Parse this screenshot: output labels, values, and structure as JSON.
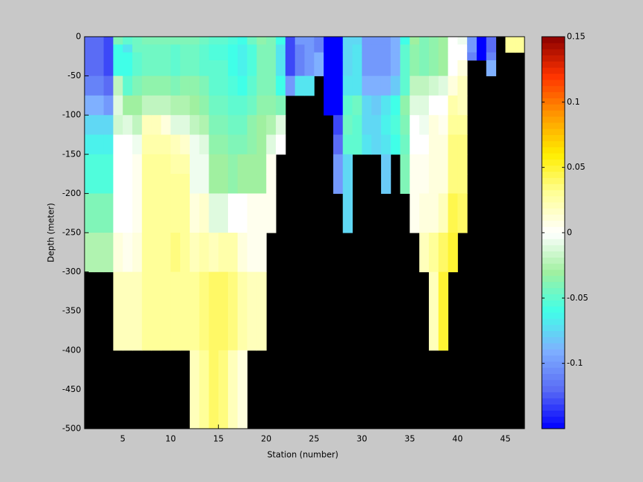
{
  "chart_data": {
    "type": "heatmap",
    "xlabel": "Station (number)",
    "ylabel": "Depth (meter)",
    "x_edges": [
      1,
      2,
      3,
      4,
      5,
      6,
      7,
      8,
      9,
      10,
      11,
      12,
      13,
      14,
      15,
      16,
      17,
      18,
      19,
      20,
      21,
      22,
      23,
      24,
      25,
      26,
      27,
      28,
      29,
      30,
      31,
      32,
      33,
      34,
      35,
      36,
      37,
      38,
      39,
      40,
      41,
      42,
      43,
      44,
      45,
      46,
      47
    ],
    "y_edges": [
      0,
      -10,
      -20,
      -30,
      -50,
      -75,
      -100,
      -125,
      -150,
      -175,
      -200,
      -250,
      -300,
      -400,
      -500
    ],
    "xlim": [
      1,
      47
    ],
    "ylim": [
      -500,
      0
    ],
    "xticks": [
      5,
      10,
      15,
      20,
      25,
      30,
      35,
      40,
      45
    ],
    "yticks": [
      0,
      -50,
      -100,
      -150,
      -200,
      -250,
      -300,
      -350,
      -400,
      -450,
      -500
    ],
    "clim": [
      -0.15,
      0.15
    ],
    "colorbar_ticks": [
      0.15,
      0.1,
      0.05,
      0,
      -0.05,
      -0.1
    ],
    "colormap": [
      "#0000ff",
      "#5a6cf5",
      "#7fb0ff",
      "#40ffe8",
      "#a0f0a0",
      "#ffffff",
      "#ffff99",
      "#ffee00",
      "#ff9900",
      "#ff3300",
      "#8b0000"
    ],
    "nan_color": "#000000",
    "background": "#c8c8c8",
    "values": [
      [
        -0.12,
        -0.12,
        -0.12,
        -0.12,
        -0.11,
        -0.09,
        -0.075,
        -0.065,
        -0.055,
        -0.055,
        -0.04,
        -0.025,
        null,
        null
      ],
      [
        -0.12,
        -0.12,
        -0.12,
        -0.12,
        -0.11,
        -0.09,
        -0.075,
        -0.065,
        -0.055,
        -0.055,
        -0.04,
        -0.025,
        null,
        null
      ],
      [
        -0.13,
        -0.13,
        -0.13,
        -0.13,
        -0.12,
        -0.1,
        -0.075,
        -0.065,
        -0.055,
        -0.055,
        -0.04,
        -0.025,
        null,
        null
      ],
      [
        -0.04,
        -0.06,
        -0.06,
        -0.06,
        -0.02,
        -0.01,
        -0.015,
        0,
        0,
        0,
        0,
        0.01,
        0.02,
        null
      ],
      [
        -0.05,
        -0.07,
        -0.06,
        -0.06,
        -0.05,
        -0.03,
        -0.01,
        0,
        0,
        0,
        0,
        0.005,
        0.02,
        null
      ],
      [
        -0.045,
        -0.045,
        -0.05,
        -0.05,
        -0.04,
        -0.03,
        -0.02,
        -0.005,
        0.005,
        0.005,
        0.005,
        0.01,
        0.02,
        null
      ],
      [
        -0.04,
        -0.045,
        -0.045,
        -0.045,
        -0.035,
        -0.02,
        0.02,
        0.025,
        0.03,
        0.03,
        0.03,
        0.03,
        0.03,
        null
      ],
      [
        -0.04,
        -0.045,
        -0.045,
        -0.045,
        -0.035,
        -0.02,
        0.02,
        0.025,
        0.03,
        0.03,
        0.03,
        0.03,
        0.03,
        null
      ],
      [
        -0.04,
        -0.045,
        -0.045,
        -0.045,
        -0.035,
        -0.02,
        0.01,
        0.025,
        0.03,
        0.03,
        0.03,
        0.03,
        0.03,
        null
      ],
      [
        -0.04,
        -0.05,
        -0.05,
        -0.05,
        -0.04,
        -0.025,
        -0.01,
        0.02,
        0.025,
        0.03,
        0.03,
        0.035,
        0.03,
        null
      ],
      [
        -0.04,
        -0.045,
        -0.045,
        -0.045,
        -0.035,
        -0.025,
        -0.01,
        0.015,
        0.025,
        0.03,
        0.03,
        0.03,
        0.03,
        null
      ],
      [
        -0.04,
        -0.045,
        -0.045,
        -0.045,
        -0.035,
        -0.03,
        -0.02,
        -0.005,
        -0.005,
        -0.005,
        0.01,
        0.02,
        0.03,
        0.02
      ],
      [
        -0.045,
        -0.05,
        -0.05,
        -0.05,
        -0.04,
        -0.035,
        -0.025,
        -0.01,
        -0.005,
        -0.005,
        0.015,
        0.025,
        0.035,
        0.03
      ],
      [
        -0.05,
        -0.055,
        -0.055,
        -0.05,
        -0.05,
        -0.045,
        -0.04,
        -0.035,
        -0.03,
        -0.03,
        -0.01,
        0.02,
        0.04,
        0.04
      ],
      [
        -0.05,
        -0.055,
        -0.055,
        -0.05,
        -0.05,
        -0.045,
        -0.04,
        -0.035,
        -0.03,
        -0.03,
        -0.01,
        0.025,
        0.04,
        0.035
      ],
      [
        -0.055,
        -0.06,
        -0.06,
        -0.06,
        -0.055,
        -0.05,
        -0.045,
        -0.04,
        -0.035,
        -0.035,
        0,
        0.025,
        0.035,
        0.02
      ],
      [
        -0.06,
        -0.065,
        -0.065,
        -0.065,
        -0.06,
        -0.05,
        -0.045,
        -0.04,
        -0.03,
        -0.03,
        0,
        0.01,
        0.025,
        0.01
      ],
      [
        -0.045,
        -0.055,
        -0.055,
        -0.055,
        -0.05,
        -0.045,
        -0.035,
        -0.035,
        -0.03,
        -0.03,
        0.005,
        0.005,
        0.02,
        null
      ],
      [
        -0.035,
        -0.04,
        -0.04,
        -0.04,
        -0.04,
        -0.035,
        -0.03,
        -0.03,
        -0.03,
        -0.03,
        0.005,
        0.005,
        0.02,
        null
      ],
      [
        -0.04,
        -0.04,
        -0.04,
        -0.04,
        -0.04,
        -0.035,
        -0.025,
        -0.01,
        0.005,
        0.005,
        0.005,
        null,
        null,
        null
      ],
      [
        -0.06,
        -0.07,
        -0.07,
        -0.07,
        -0.06,
        -0.04,
        -0.01,
        0,
        null,
        null,
        null,
        null,
        null,
        null
      ],
      [
        -0.13,
        -0.13,
        -0.13,
        -0.13,
        -0.1,
        null,
        null,
        null,
        null,
        null,
        null,
        null,
        null,
        null
      ],
      [
        -0.1,
        -0.11,
        -0.11,
        -0.11,
        -0.07,
        null,
        null,
        null,
        null,
        null,
        null,
        null,
        null,
        null
      ],
      [
        -0.1,
        -0.1,
        -0.1,
        -0.1,
        -0.07,
        null,
        null,
        null,
        null,
        null,
        null,
        null,
        null,
        null
      ],
      [
        -0.11,
        -0.11,
        -0.09,
        -0.09,
        null,
        null,
        null,
        null,
        null,
        null,
        null,
        null,
        null,
        null
      ],
      [
        -0.15,
        -0.15,
        -0.15,
        -0.15,
        -0.15,
        -0.15,
        null,
        null,
        null,
        null,
        null,
        null,
        null,
        null
      ],
      [
        -0.15,
        -0.15,
        -0.15,
        -0.15,
        -0.15,
        -0.15,
        -0.13,
        -0.12,
        -0.1,
        -0.1,
        null,
        null,
        null,
        null
      ],
      [
        -0.075,
        -0.075,
        -0.075,
        -0.075,
        -0.07,
        -0.05,
        -0.045,
        -0.05,
        -0.075,
        -0.075,
        -0.075,
        null,
        null,
        null
      ],
      [
        -0.075,
        -0.07,
        -0.07,
        -0.07,
        -0.07,
        -0.045,
        -0.05,
        -0.05,
        null,
        null,
        null,
        null,
        null,
        null
      ],
      [
        -0.1,
        -0.1,
        -0.1,
        -0.1,
        -0.09,
        -0.075,
        -0.075,
        -0.07,
        null,
        null,
        null,
        null,
        null,
        null
      ],
      [
        -0.1,
        -0.1,
        -0.1,
        -0.1,
        -0.09,
        -0.08,
        -0.075,
        -0.075,
        null,
        null,
        null,
        null,
        null,
        null
      ],
      [
        -0.1,
        -0.1,
        -0.1,
        -0.1,
        -0.09,
        -0.07,
        -0.065,
        -0.07,
        -0.08,
        -0.08,
        null,
        null,
        null,
        null
      ],
      [
        -0.09,
        -0.09,
        -0.09,
        -0.09,
        -0.08,
        -0.06,
        -0.055,
        -0.06,
        null,
        null,
        null,
        null,
        null,
        null
      ],
      [
        -0.06,
        -0.05,
        -0.05,
        -0.05,
        -0.05,
        -0.035,
        -0.04,
        -0.045,
        -0.04,
        -0.04,
        null,
        null,
        null,
        null
      ],
      [
        -0.03,
        -0.035,
        -0.035,
        -0.035,
        -0.02,
        -0.01,
        0,
        0,
        0.005,
        0.005,
        0.005,
        null,
        null,
        null
      ],
      [
        -0.04,
        -0.04,
        -0.04,
        -0.04,
        -0.02,
        -0.01,
        -0.005,
        0,
        0.005,
        0.005,
        0.01,
        0.02,
        null,
        null
      ],
      [
        -0.035,
        -0.035,
        -0.035,
        -0.035,
        -0.015,
        0,
        0.01,
        0.01,
        0.01,
        0.01,
        0.01,
        0.03,
        0.02,
        null
      ],
      [
        -0.03,
        -0.03,
        -0.03,
        -0.03,
        -0.01,
        0,
        0.005,
        0.01,
        0.01,
        0.01,
        0.02,
        0.04,
        0.05,
        null
      ],
      [
        0,
        0,
        0,
        0,
        0.01,
        0.025,
        0.03,
        0.035,
        0.035,
        0.035,
        0.045,
        0.05,
        null,
        null
      ],
      [
        -0.005,
        0,
        0,
        0.01,
        0.02,
        0.02,
        0.03,
        0.035,
        0.035,
        0.035,
        0.04,
        null,
        null,
        null
      ],
      [
        -0.1,
        -0.1,
        -0.11,
        null,
        null,
        null,
        null,
        null,
        null,
        null,
        null,
        null,
        null,
        null
      ],
      [
        -0.15,
        -0.15,
        -0.15,
        null,
        null,
        null,
        null,
        null,
        null,
        null,
        null,
        null,
        null,
        null
      ],
      [
        -0.12,
        -0.12,
        -0.11,
        -0.09,
        null,
        null,
        null,
        null,
        null,
        null,
        null,
        null,
        null,
        null
      ],
      [
        null,
        null,
        null,
        null,
        null,
        null,
        null,
        null,
        null,
        null,
        null,
        null,
        null,
        null
      ],
      [
        0.03,
        0.03,
        null,
        null,
        null,
        null,
        null,
        null,
        null,
        null,
        null,
        null,
        null,
        null
      ],
      [
        0.03,
        0.03,
        null,
        null,
        null,
        null,
        null,
        null,
        null,
        null,
        null,
        null,
        null,
        null
      ]
    ]
  }
}
